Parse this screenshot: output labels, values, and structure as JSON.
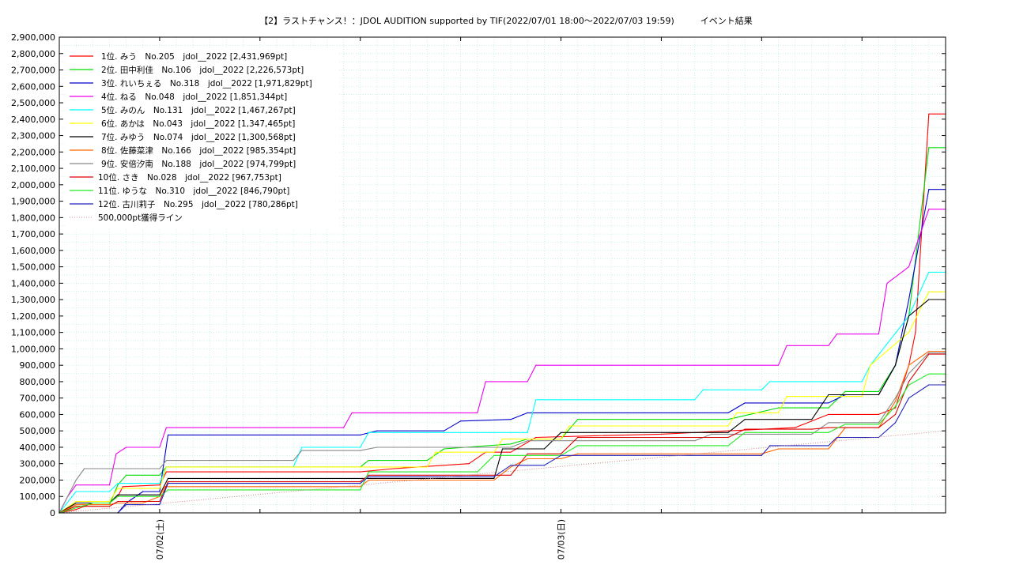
{
  "chart_data": {
    "type": "line",
    "title": "【2】ラストチャンス！：JDOL AUDITION supported by TIF(2022/07/01 18:00～2022/07/03 19:59)　　　イベント結果",
    "xlabel": "",
    "ylabel": "",
    "x_tick_labels": [
      "07/02(土)",
      "07/03(日)"
    ],
    "x_tick_positions_hours": [
      6,
      30
    ],
    "x_range_hours": [
      0,
      53
    ],
    "y_ticks": [
      "0",
      "100,000",
      "200,000",
      "300,000",
      "400,000",
      "500,000",
      "600,000",
      "700,000",
      "800,000",
      "900,000",
      "1,000,000",
      "1,100,000",
      "1,200,000",
      "1,300,000",
      "1,400,000",
      "1,500,000",
      "1,600,000",
      "1,700,000",
      "1,800,000",
      "1,900,000",
      "2,000,000",
      "2,100,000",
      "2,200,000",
      "2,300,000",
      "2,400,000",
      "2,500,000",
      "2,600,000",
      "2,700,000",
      "2,800,000",
      "2,900,000"
    ],
    "ylim": [
      0,
      2900000
    ],
    "grid": true,
    "legend_position": "top-left",
    "series": [
      {
        "name": "1位. みう　No.205　jdol__2022 [2,431,969pt]",
        "color": "#ff0000",
        "points": [
          [
            0,
            0
          ],
          [
            1,
            20000
          ],
          [
            2,
            60000
          ],
          [
            3,
            60000
          ],
          [
            3.5,
            100000
          ],
          [
            3.8,
            160000
          ],
          [
            6,
            170000
          ],
          [
            6.4,
            250000
          ],
          [
            10,
            250000
          ],
          [
            18,
            250000
          ],
          [
            20,
            270000
          ],
          [
            24.5,
            300000
          ],
          [
            25.5,
            370000
          ],
          [
            27,
            370000
          ],
          [
            28.5,
            460000
          ],
          [
            32,
            470000
          ],
          [
            36,
            480000
          ],
          [
            40,
            500000
          ],
          [
            44,
            520000
          ],
          [
            45,
            560000
          ],
          [
            46,
            600000
          ],
          [
            49,
            600000
          ],
          [
            50,
            640000
          ],
          [
            50.8,
            900000
          ],
          [
            51.2,
            1100000
          ],
          [
            52,
            2431969
          ],
          [
            53,
            2431969
          ]
        ]
      },
      {
        "name": "2位. 田中利佳　No.106　jdol__2022 [2,226,573pt]",
        "color": "#00dd00",
        "points": [
          [
            0,
            0
          ],
          [
            1,
            50000
          ],
          [
            3,
            50000
          ],
          [
            3.5,
            170000
          ],
          [
            4,
            230000
          ],
          [
            6,
            230000
          ],
          [
            6.4,
            280000
          ],
          [
            18,
            280000
          ],
          [
            18.5,
            320000
          ],
          [
            22,
            320000
          ],
          [
            23,
            390000
          ],
          [
            27,
            420000
          ],
          [
            28,
            450000
          ],
          [
            30,
            450000
          ],
          [
            31,
            570000
          ],
          [
            40,
            570000
          ],
          [
            43,
            640000
          ],
          [
            46,
            640000
          ],
          [
            47,
            740000
          ],
          [
            49,
            740000
          ],
          [
            50,
            900000
          ],
          [
            50.8,
            1200000
          ],
          [
            52,
            2226573
          ],
          [
            53,
            2226573
          ]
        ]
      },
      {
        "name": "3位. れいちぇる　No.318　jdol__2022 [1,971,829pt]",
        "color": "#0000cc",
        "points": [
          [
            0,
            0
          ],
          [
            3.5,
            0
          ],
          [
            4,
            60000
          ],
          [
            5,
            130000
          ],
          [
            6,
            130000
          ],
          [
            6.5,
            475000
          ],
          [
            18,
            475000
          ],
          [
            19,
            500000
          ],
          [
            23,
            500000
          ],
          [
            24,
            560000
          ],
          [
            27,
            570000
          ],
          [
            28,
            610000
          ],
          [
            40,
            610000
          ],
          [
            41,
            670000
          ],
          [
            46,
            670000
          ],
          [
            47,
            720000
          ],
          [
            49,
            720000
          ],
          [
            50,
            900000
          ],
          [
            50.8,
            1300000
          ],
          [
            52,
            1971829
          ],
          [
            53,
            1971829
          ]
        ]
      },
      {
        "name": "4位. ねる　No.048　jdol__2022 [1,851,344pt]",
        "color": "#ee00ee",
        "points": [
          [
            0,
            0
          ],
          [
            0.5,
            100000
          ],
          [
            1,
            170000
          ],
          [
            3,
            170000
          ],
          [
            3.4,
            360000
          ],
          [
            4,
            400000
          ],
          [
            6,
            400000
          ],
          [
            6.4,
            520000
          ],
          [
            17,
            520000
          ],
          [
            17.5,
            610000
          ],
          [
            25,
            610000
          ],
          [
            25.5,
            800000
          ],
          [
            28,
            800000
          ],
          [
            28.5,
            900000
          ],
          [
            43,
            900000
          ],
          [
            43.5,
            1020000
          ],
          [
            46,
            1020000
          ],
          [
            46.5,
            1090000
          ],
          [
            49,
            1090000
          ],
          [
            49.5,
            1400000
          ],
          [
            50.8,
            1500000
          ],
          [
            52,
            1851344
          ],
          [
            53,
            1851344
          ]
        ]
      },
      {
        "name": "5位. みのん　No.131　jdol__2022 [1,467,267pt]",
        "color": "#00ffff",
        "points": [
          [
            0,
            0
          ],
          [
            1,
            130000
          ],
          [
            3,
            130000
          ],
          [
            3.5,
            180000
          ],
          [
            6,
            180000
          ],
          [
            6.4,
            280000
          ],
          [
            14,
            280000
          ],
          [
            14.5,
            400000
          ],
          [
            18,
            400000
          ],
          [
            18.5,
            490000
          ],
          [
            28,
            490000
          ],
          [
            28.5,
            690000
          ],
          [
            38,
            690000
          ],
          [
            38.5,
            750000
          ],
          [
            42,
            750000
          ],
          [
            42.5,
            800000
          ],
          [
            48,
            800000
          ],
          [
            48.5,
            900000
          ],
          [
            50.8,
            1200000
          ],
          [
            52,
            1467267
          ],
          [
            53,
            1467267
          ]
        ]
      },
      {
        "name": "6位. あかは　No.043　jdol__2022 [1,347,465pt]",
        "color": "#ffff00",
        "points": [
          [
            0,
            0
          ],
          [
            1,
            70000
          ],
          [
            3,
            70000
          ],
          [
            3.5,
            150000
          ],
          [
            6,
            150000
          ],
          [
            6.4,
            280000
          ],
          [
            22,
            280000
          ],
          [
            22.5,
            370000
          ],
          [
            26,
            370000
          ],
          [
            26.5,
            450000
          ],
          [
            30,
            450000
          ],
          [
            30.5,
            530000
          ],
          [
            40,
            530000
          ],
          [
            40.5,
            610000
          ],
          [
            43,
            610000
          ],
          [
            43.5,
            710000
          ],
          [
            48,
            710000
          ],
          [
            48.5,
            900000
          ],
          [
            50.8,
            1100000
          ],
          [
            52,
            1347465
          ],
          [
            53,
            1347465
          ]
        ]
      },
      {
        "name": "7位. みゆう　No.074　jdol__2022 [1,300,568pt]",
        "color": "#000000",
        "points": [
          [
            0,
            0
          ],
          [
            1,
            60000
          ],
          [
            3,
            60000
          ],
          [
            3.5,
            110000
          ],
          [
            6,
            110000
          ],
          [
            6.5,
            210000
          ],
          [
            26,
            210000
          ],
          [
            26.5,
            390000
          ],
          [
            29,
            390000
          ],
          [
            30,
            490000
          ],
          [
            40,
            490000
          ],
          [
            41,
            570000
          ],
          [
            45,
            570000
          ],
          [
            46,
            720000
          ],
          [
            49,
            720000
          ],
          [
            50,
            900000
          ],
          [
            50.8,
            1200000
          ],
          [
            52,
            1300568
          ],
          [
            53,
            1300568
          ]
        ]
      },
      {
        "name": "8位. 佐藤菜津　No.166　jdol__2022 [985,354pt]",
        "color": "#ff6600",
        "points": [
          [
            0,
            0
          ],
          [
            1,
            50000
          ],
          [
            3,
            50000
          ],
          [
            3.5,
            60000
          ],
          [
            5,
            60000
          ],
          [
            6,
            100000
          ],
          [
            6.3,
            160000
          ],
          [
            18,
            160000
          ],
          [
            18.5,
            200000
          ],
          [
            26,
            200000
          ],
          [
            27,
            280000
          ],
          [
            28,
            330000
          ],
          [
            30,
            330000
          ],
          [
            31,
            360000
          ],
          [
            42,
            360000
          ],
          [
            43,
            390000
          ],
          [
            46,
            390000
          ],
          [
            47,
            520000
          ],
          [
            49,
            520000
          ],
          [
            50,
            680000
          ],
          [
            50.8,
            900000
          ],
          [
            52,
            985354
          ],
          [
            53,
            985354
          ]
        ]
      },
      {
        "name": "9位. 安倍汐南　No.188　jdol__2022 [974,799pt]",
        "color": "#888888",
        "points": [
          [
            0,
            0
          ],
          [
            1,
            200000
          ],
          [
            1.5,
            270000
          ],
          [
            6,
            270000
          ],
          [
            6.4,
            320000
          ],
          [
            14,
            320000
          ],
          [
            14.5,
            380000
          ],
          [
            18,
            380000
          ],
          [
            19,
            400000
          ],
          [
            27,
            400000
          ],
          [
            28,
            440000
          ],
          [
            38,
            440000
          ],
          [
            39,
            480000
          ],
          [
            45,
            480000
          ],
          [
            46,
            550000
          ],
          [
            49,
            550000
          ],
          [
            50,
            700000
          ],
          [
            50.8,
            850000
          ],
          [
            52,
            974799
          ],
          [
            53,
            974799
          ]
        ]
      },
      {
        "name": "10位. さき　No.028　jdol__2022 [967,753pt]",
        "color": "#dd0000",
        "points": [
          [
            0,
            0
          ],
          [
            1,
            40000
          ],
          [
            3,
            40000
          ],
          [
            3.5,
            70000
          ],
          [
            6,
            70000
          ],
          [
            6.5,
            190000
          ],
          [
            18,
            190000
          ],
          [
            18.5,
            230000
          ],
          [
            27,
            230000
          ],
          [
            28,
            360000
          ],
          [
            30,
            360000
          ],
          [
            31,
            460000
          ],
          [
            40,
            460000
          ],
          [
            41,
            510000
          ],
          [
            45,
            510000
          ],
          [
            46,
            520000
          ],
          [
            49,
            520000
          ],
          [
            50,
            600000
          ],
          [
            50.8,
            800000
          ],
          [
            52,
            967753
          ],
          [
            53,
            967753
          ]
        ]
      },
      {
        "name": "11位. ゆうな　No.310　jdol__2022 [846,790pt]",
        "color": "#22ee22",
        "points": [
          [
            0,
            0
          ],
          [
            2,
            60000
          ],
          [
            3,
            60000
          ],
          [
            3.5,
            100000
          ],
          [
            6,
            100000
          ],
          [
            6.5,
            140000
          ],
          [
            18,
            140000
          ],
          [
            18.5,
            250000
          ],
          [
            25,
            250000
          ],
          [
            26,
            350000
          ],
          [
            30,
            350000
          ],
          [
            31,
            410000
          ],
          [
            40,
            410000
          ],
          [
            41,
            490000
          ],
          [
            46,
            490000
          ],
          [
            47,
            540000
          ],
          [
            49,
            540000
          ],
          [
            50,
            650000
          ],
          [
            50.8,
            780000
          ],
          [
            52,
            846790
          ],
          [
            53,
            846790
          ]
        ]
      },
      {
        "name": "12位. 古川莉子　No.295　jdol__2022 [780,286pt]",
        "color": "#2222bb",
        "points": [
          [
            0,
            0
          ],
          [
            3.5,
            0
          ],
          [
            4,
            50000
          ],
          [
            6,
            50000
          ],
          [
            6.5,
            180000
          ],
          [
            18,
            180000
          ],
          [
            18.5,
            220000
          ],
          [
            26,
            220000
          ],
          [
            27,
            290000
          ],
          [
            29,
            290000
          ],
          [
            30,
            350000
          ],
          [
            42,
            350000
          ],
          [
            42.5,
            410000
          ],
          [
            46,
            410000
          ],
          [
            46.5,
            460000
          ],
          [
            49,
            460000
          ],
          [
            50,
            550000
          ],
          [
            50.8,
            700000
          ],
          [
            52,
            780286
          ],
          [
            53,
            780286
          ]
        ]
      },
      {
        "name": "500,000pt獲得ライン",
        "color": "#cc8888",
        "dotted": true,
        "points": [
          [
            0,
            0
          ],
          [
            53,
            500000
          ]
        ]
      }
    ]
  }
}
